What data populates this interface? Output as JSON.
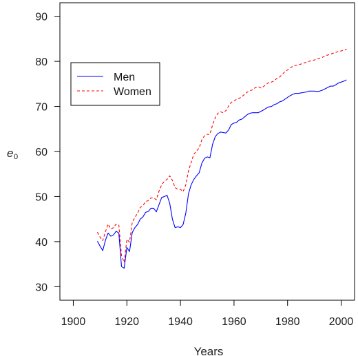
{
  "chart_data": {
    "type": "line",
    "title": "",
    "xlabel": "Years",
    "ylabel": "e",
    "ylabel_subscript": "0",
    "xlim": [
      1895,
      2005
    ],
    "ylim": [
      27,
      93
    ],
    "x_ticks": [
      1900,
      1920,
      1940,
      1960,
      1980,
      2000
    ],
    "y_ticks": [
      30,
      40,
      50,
      60,
      70,
      80,
      90
    ],
    "grid": false,
    "legend_position": "upper-left",
    "series": [
      {
        "name": "Men",
        "color": "#0000ff",
        "dash": "solid",
        "points": [
          [
            1909,
            40.1
          ],
          [
            1910,
            39.0
          ],
          [
            1911,
            38.0
          ],
          [
            1912,
            40.3
          ],
          [
            1913,
            41.9
          ],
          [
            1914,
            41.2
          ],
          [
            1915,
            41.5
          ],
          [
            1916,
            42.3
          ],
          [
            1917,
            41.9
          ],
          [
            1918,
            34.5
          ],
          [
            1919,
            34.1
          ],
          [
            1920,
            38.7
          ],
          [
            1921,
            37.8
          ],
          [
            1922,
            42.0
          ],
          [
            1923,
            43.1
          ],
          [
            1924,
            43.8
          ],
          [
            1925,
            45.0
          ],
          [
            1926,
            45.5
          ],
          [
            1927,
            46.5
          ],
          [
            1928,
            46.7
          ],
          [
            1929,
            47.4
          ],
          [
            1930,
            47.4
          ],
          [
            1931,
            46.6
          ],
          [
            1932,
            48.2
          ],
          [
            1933,
            49.8
          ],
          [
            1934,
            50.0
          ],
          [
            1935,
            50.3
          ],
          [
            1936,
            48.5
          ],
          [
            1937,
            45.0
          ],
          [
            1938,
            43.1
          ],
          [
            1939,
            43.3
          ],
          [
            1940,
            43.1
          ],
          [
            1941,
            43.8
          ],
          [
            1942,
            46.3
          ],
          [
            1943,
            50.6
          ],
          [
            1944,
            52.6
          ],
          [
            1945,
            53.8
          ],
          [
            1946,
            54.6
          ],
          [
            1947,
            55.3
          ],
          [
            1948,
            57.4
          ],
          [
            1949,
            58.5
          ],
          [
            1950,
            58.8
          ],
          [
            1951,
            58.6
          ],
          [
            1952,
            61.6
          ],
          [
            1953,
            63.3
          ],
          [
            1954,
            64.0
          ],
          [
            1955,
            64.3
          ],
          [
            1956,
            64.2
          ],
          [
            1957,
            64.1
          ],
          [
            1958,
            64.8
          ],
          [
            1959,
            66.0
          ],
          [
            1960,
            66.3
          ],
          [
            1961,
            66.5
          ],
          [
            1962,
            67.0
          ],
          [
            1963,
            67.2
          ],
          [
            1964,
            67.7
          ],
          [
            1965,
            68.2
          ],
          [
            1966,
            68.5
          ],
          [
            1967,
            68.6
          ],
          [
            1968,
            68.6
          ],
          [
            1969,
            68.6
          ],
          [
            1970,
            68.9
          ],
          [
            1971,
            69.2
          ],
          [
            1972,
            69.6
          ],
          [
            1973,
            69.9
          ],
          [
            1974,
            70.0
          ],
          [
            1975,
            70.4
          ],
          [
            1976,
            70.6
          ],
          [
            1977,
            71.0
          ],
          [
            1978,
            71.2
          ],
          [
            1979,
            71.6
          ],
          [
            1980,
            72.0
          ],
          [
            1981,
            72.4
          ],
          [
            1982,
            72.7
          ],
          [
            1983,
            72.9
          ],
          [
            1984,
            72.9
          ],
          [
            1985,
            73.0
          ],
          [
            1986,
            73.1
          ],
          [
            1987,
            73.2
          ],
          [
            1988,
            73.4
          ],
          [
            1989,
            73.4
          ],
          [
            1990,
            73.4
          ],
          [
            1991,
            73.3
          ],
          [
            1992,
            73.4
          ],
          [
            1993,
            73.6
          ],
          [
            1994,
            73.9
          ],
          [
            1995,
            74.2
          ],
          [
            1996,
            74.5
          ],
          [
            1997,
            74.5
          ],
          [
            1998,
            74.8
          ],
          [
            1999,
            75.2
          ],
          [
            2000,
            75.4
          ],
          [
            2001,
            75.6
          ],
          [
            2002,
            75.9
          ]
        ]
      },
      {
        "name": "Women",
        "color": "#ff0000",
        "dash": "dashed",
        "points": [
          [
            1909,
            42.1
          ],
          [
            1910,
            41.0
          ],
          [
            1911,
            40.2
          ],
          [
            1912,
            42.2
          ],
          [
            1913,
            43.9
          ],
          [
            1914,
            42.8
          ],
          [
            1915,
            43.1
          ],
          [
            1916,
            43.9
          ],
          [
            1917,
            43.7
          ],
          [
            1918,
            36.9
          ],
          [
            1919,
            35.4
          ],
          [
            1920,
            40.5
          ],
          [
            1921,
            39.9
          ],
          [
            1922,
            44.2
          ],
          [
            1923,
            45.4
          ],
          [
            1924,
            46.3
          ],
          [
            1925,
            47.6
          ],
          [
            1926,
            48.0
          ],
          [
            1927,
            48.9
          ],
          [
            1928,
            49.1
          ],
          [
            1929,
            49.7
          ],
          [
            1930,
            49.7
          ],
          [
            1931,
            49.3
          ],
          [
            1932,
            51.2
          ],
          [
            1933,
            52.6
          ],
          [
            1934,
            53.4
          ],
          [
            1935,
            53.8
          ],
          [
            1936,
            54.6
          ],
          [
            1937,
            53.6
          ],
          [
            1938,
            52.0
          ],
          [
            1939,
            51.6
          ],
          [
            1940,
            51.6
          ],
          [
            1941,
            51.1
          ],
          [
            1942,
            52.6
          ],
          [
            1943,
            55.7
          ],
          [
            1944,
            57.6
          ],
          [
            1945,
            59.4
          ],
          [
            1946,
            60.1
          ],
          [
            1947,
            60.8
          ],
          [
            1948,
            62.6
          ],
          [
            1949,
            63.5
          ],
          [
            1950,
            63.8
          ],
          [
            1951,
            63.8
          ],
          [
            1952,
            65.9
          ],
          [
            1953,
            67.5
          ],
          [
            1954,
            68.5
          ],
          [
            1955,
            68.8
          ],
          [
            1956,
            68.6
          ],
          [
            1957,
            69.1
          ],
          [
            1958,
            70.1
          ],
          [
            1959,
            70.9
          ],
          [
            1960,
            71.2
          ],
          [
            1961,
            71.6
          ],
          [
            1962,
            71.8
          ],
          [
            1963,
            72.2
          ],
          [
            1964,
            72.7
          ],
          [
            1965,
            73.2
          ],
          [
            1966,
            73.5
          ],
          [
            1967,
            73.7
          ],
          [
            1968,
            74.2
          ],
          [
            1969,
            74.4
          ],
          [
            1970,
            74.1
          ],
          [
            1971,
            74.4
          ],
          [
            1972,
            74.9
          ],
          [
            1973,
            75.3
          ],
          [
            1974,
            75.4
          ],
          [
            1975,
            75.7
          ],
          [
            1976,
            76.2
          ],
          [
            1977,
            76.5
          ],
          [
            1978,
            77.1
          ],
          [
            1979,
            77.7
          ],
          [
            1980,
            78.1
          ],
          [
            1981,
            78.6
          ],
          [
            1982,
            78.9
          ],
          [
            1983,
            79.1
          ],
          [
            1984,
            79.2
          ],
          [
            1985,
            79.4
          ],
          [
            1986,
            79.6
          ],
          [
            1987,
            79.8
          ],
          [
            1988,
            80.0
          ],
          [
            1989,
            80.2
          ],
          [
            1990,
            80.3
          ],
          [
            1991,
            80.5
          ],
          [
            1992,
            80.7
          ],
          [
            1993,
            80.9
          ],
          [
            1994,
            81.2
          ],
          [
            1995,
            81.4
          ],
          [
            1996,
            81.6
          ],
          [
            1997,
            81.8
          ],
          [
            1998,
            82.0
          ],
          [
            1999,
            82.2
          ],
          [
            2000,
            82.3
          ],
          [
            2001,
            82.5
          ],
          [
            2002,
            82.7
          ]
        ]
      }
    ]
  }
}
